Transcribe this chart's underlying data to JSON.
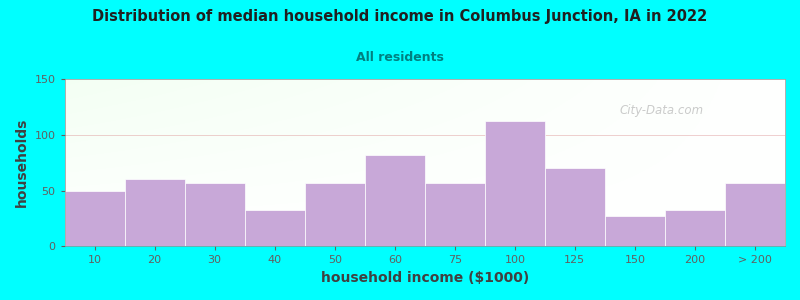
{
  "title": "Distribution of median household income in Columbus Junction, IA in 2022",
  "subtitle": "All residents",
  "xlabel": "household income ($1000)",
  "ylabel": "households",
  "background_color": "#00FFFF",
  "bar_color": "#C8A8D8",
  "categories": [
    "10",
    "20",
    "30",
    "40",
    "50",
    "60",
    "75",
    "100",
    "125",
    "150",
    "200",
    "> 200"
  ],
  "values": [
    50,
    60,
    57,
    33,
    57,
    82,
    57,
    112,
    70,
    27,
    33,
    57
  ],
  "ylim": [
    0,
    150
  ],
  "yticks": [
    0,
    50,
    100,
    150
  ],
  "watermark": "City-Data.com"
}
